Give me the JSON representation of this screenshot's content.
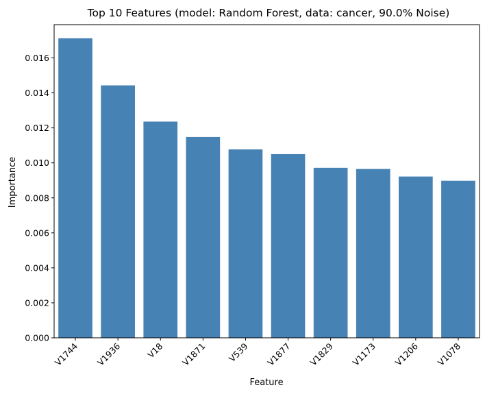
{
  "chart_data": {
    "type": "bar",
    "title": "Top 10 Features (model: Random Forest, data: cancer, 90.0% Noise)",
    "xlabel": "Feature",
    "ylabel": "Importance",
    "categories": [
      "V1744",
      "V1936",
      "V18",
      "V1871",
      "V539",
      "V1877",
      "V1829",
      "V1173",
      "V1206",
      "V1078"
    ],
    "values": [
      0.01712,
      0.01443,
      0.01236,
      0.01148,
      0.01077,
      0.0105,
      0.00972,
      0.00965,
      0.00922,
      0.00898
    ],
    "ylim": [
      0,
      0.0179
    ],
    "yticks": [
      0.0,
      0.002,
      0.004,
      0.006,
      0.008,
      0.01,
      0.012,
      0.014,
      0.016
    ],
    "ytick_labels": [
      "0.000",
      "0.002",
      "0.004",
      "0.006",
      "0.008",
      "0.010",
      "0.012",
      "0.014",
      "0.016"
    ],
    "bar_color": "#4682b4",
    "grid": false,
    "legend": "none"
  }
}
